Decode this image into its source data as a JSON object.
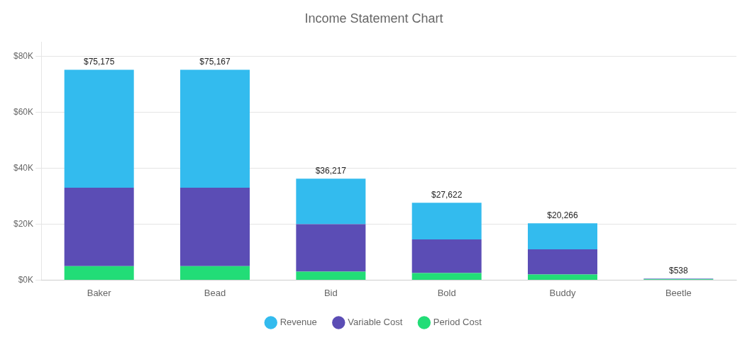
{
  "chart_data": {
    "type": "bar",
    "title": "Income Statement Chart",
    "categories": [
      "Baker",
      "Bead",
      "Bid",
      "Bold",
      "Buddy",
      "Beetle"
    ],
    "stacked": true,
    "series": [
      {
        "name": "Period Cost",
        "color": "#22DD77",
        "values": [
          5000,
          5000,
          3000,
          2500,
          2000,
          300
        ]
      },
      {
        "name": "Variable Cost",
        "color": "#5B4DB5",
        "values": [
          28000,
          28000,
          17000,
          12000,
          9000,
          200
        ]
      },
      {
        "name": "Revenue",
        "color": "#33BBEE",
        "values": [
          42175,
          42167,
          16217,
          13122,
          9266,
          38
        ]
      }
    ],
    "annotations": [
      "$75,175",
      "$75,167",
      "$36,217",
      "$27,622",
      "$20,266",
      "$538"
    ],
    "ylim": [
      0,
      85000
    ],
    "yticks": [
      {
        "value": 0,
        "label": "$0K"
      },
      {
        "value": 20000,
        "label": "$20K"
      },
      {
        "value": 40000,
        "label": "$40K"
      },
      {
        "value": 60000,
        "label": "$60K"
      },
      {
        "value": 80000,
        "label": "$80K"
      }
    ],
    "grid": true,
    "legend": "bottom"
  }
}
